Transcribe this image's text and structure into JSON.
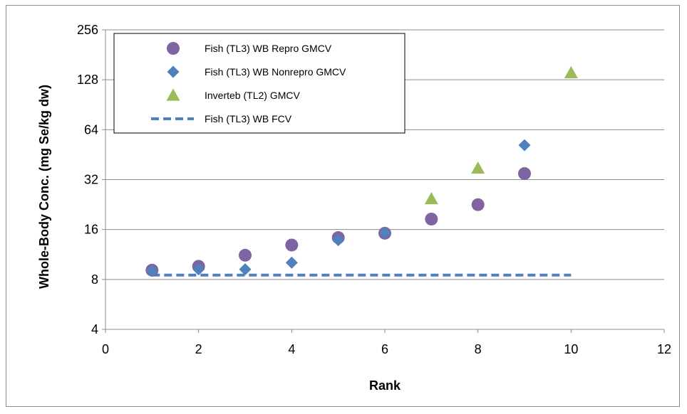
{
  "chart_data": {
    "type": "scatter",
    "title": "",
    "xlabel": "Rank",
    "ylabel": "Whole-Body Conc. (mg Se/kg dw)",
    "xlim": [
      0,
      12
    ],
    "ylim": [
      4,
      256
    ],
    "yscale": "log2",
    "x_ticks": [
      0,
      2,
      4,
      6,
      8,
      10,
      12
    ],
    "y_ticks": [
      4,
      8,
      16,
      32,
      64,
      128,
      256
    ],
    "grid": "horizontal",
    "legend_position": "top-left",
    "series": [
      {
        "name": "Fish (TL3) WB Repro GMCV",
        "marker": "circle",
        "color": "#8064a2",
        "points": [
          [
            1,
            9.1
          ],
          [
            2,
            9.6
          ],
          [
            3,
            11.2
          ],
          [
            4,
            12.9
          ],
          [
            5,
            14.3
          ],
          [
            6,
            15.2
          ],
          [
            7,
            18.5
          ],
          [
            8,
            22.6
          ],
          [
            9,
            34.8
          ]
        ]
      },
      {
        "name": "Fish (TL3) WB Nonrepro GMCV",
        "marker": "diamond",
        "color": "#4f81bd",
        "points": [
          [
            1,
            9.0
          ],
          [
            2,
            9.2
          ],
          [
            3,
            9.2
          ],
          [
            4,
            10.1
          ],
          [
            5,
            13.8
          ],
          [
            6,
            15.3
          ],
          [
            9,
            51.6
          ]
        ]
      },
      {
        "name": "Inverteb (TL2) GMCV",
        "marker": "triangle",
        "color": "#9bbb59",
        "points": [
          [
            7,
            24.5
          ],
          [
            8,
            37.5
          ],
          [
            10,
            141.0
          ]
        ]
      },
      {
        "name": "Fish (TL3) WB FCV",
        "marker": "dashed-line",
        "color": "#4f81bd",
        "points": [
          [
            1,
            8.5
          ],
          [
            10,
            8.5
          ]
        ]
      }
    ]
  }
}
